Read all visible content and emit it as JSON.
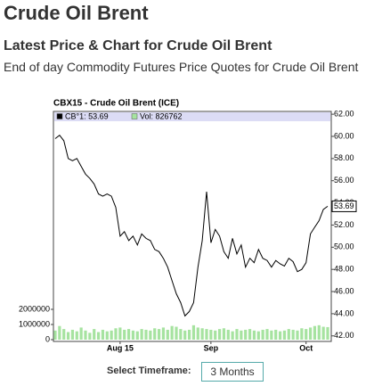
{
  "header": {
    "title": "Crude Oil Brent",
    "subtitle": "Latest Price & Chart for Crude Oil Brent",
    "description": "End of day Commodity Futures Price Quotes for Crude Oil Brent"
  },
  "chart_data": {
    "type": "line",
    "title": "CBX15 - Crude Oil Brent (ICE)",
    "categories": [
      null,
      null,
      null,
      null,
      null,
      null,
      null,
      null,
      null,
      null,
      null,
      null,
      null,
      null,
      null,
      "Aug 15",
      null,
      null,
      null,
      null,
      null,
      null,
      null,
      null,
      null,
      null,
      null,
      null,
      null,
      null,
      null,
      null,
      null,
      null,
      null,
      null,
      "Sep",
      null,
      null,
      null,
      null,
      null,
      null,
      null,
      null,
      null,
      null,
      null,
      null,
      null,
      null,
      null,
      null,
      null,
      null,
      null,
      null,
      null,
      "Oct",
      null,
      null,
      null,
      null,
      null
    ],
    "series": [
      {
        "name": "CB°1: 53.69",
        "color": "#000000",
        "values": [
          59.8,
          60.1,
          59.6,
          58.0,
          57.8,
          58.0,
          57.3,
          56.6,
          56.2,
          55.7,
          54.8,
          54.6,
          54.8,
          54.6,
          53.6,
          51.0,
          51.4,
          50.6,
          51.0,
          50.2,
          51.2,
          50.8,
          50.6,
          49.8,
          49.6,
          49.0,
          48.2,
          47.0,
          45.8,
          45.0,
          43.8,
          44.2,
          45.0,
          48.2,
          50.6,
          55.0,
          50.4,
          51.6,
          51.0,
          49.6,
          49.0,
          50.8,
          49.4,
          50.2,
          48.2,
          49.0,
          48.6,
          49.8,
          49.0,
          48.8,
          48.2,
          48.8,
          48.5,
          48.3,
          49.0,
          48.7,
          47.8,
          48.0,
          48.6,
          51.2,
          51.8,
          52.4,
          53.4,
          53.69
        ]
      },
      {
        "name": "Vol: 826762",
        "color": "#a6e3a0",
        "axis": "y2",
        "values": [
          600000,
          900000,
          700000,
          500000,
          650000,
          550000,
          800000,
          600000,
          450000,
          700000,
          500000,
          650000,
          550000,
          600000,
          750000,
          800000,
          650000,
          700000,
          600000,
          550000,
          700000,
          650000,
          600000,
          750000,
          700000,
          800000,
          650000,
          900000,
          850000,
          700000,
          600000,
          650000,
          950000,
          800000,
          750000,
          700000,
          650000,
          600000,
          700000,
          750000,
          650000,
          550000,
          700000,
          600000,
          650000,
          700000,
          600000,
          550000,
          650000,
          700000,
          600000,
          650000,
          550000,
          600000,
          700000,
          650000,
          600000,
          750000,
          700000,
          800000,
          900000,
          950000,
          850000,
          826762
        ]
      }
    ],
    "ylim": [
      41.5,
      62.25
    ],
    "yticks": [
      {
        "value": 42,
        "label": "42.00"
      },
      {
        "value": 44,
        "label": "44.00"
      },
      {
        "value": 46,
        "label": "46.00"
      },
      {
        "value": 48,
        "label": "48.00"
      },
      {
        "value": 50,
        "label": "50.00"
      },
      {
        "value": 52,
        "label": "52.00"
      },
      {
        "value": 54,
        "label": "54.00"
      },
      {
        "value": 56,
        "label": "56.00"
      },
      {
        "value": 58,
        "label": "58.00"
      },
      {
        "value": 60,
        "label": "60.00"
      },
      {
        "value": 62,
        "label": "62.00"
      }
    ],
    "y2lim": [
      0,
      15000000
    ],
    "y2ticks": [
      0,
      1000000,
      2000000
    ],
    "last_price": {
      "value": 53.69,
      "label": "53.69"
    },
    "grid": false
  },
  "controls": {
    "label": "Select Timeframe:",
    "selected": "3 Months"
  }
}
